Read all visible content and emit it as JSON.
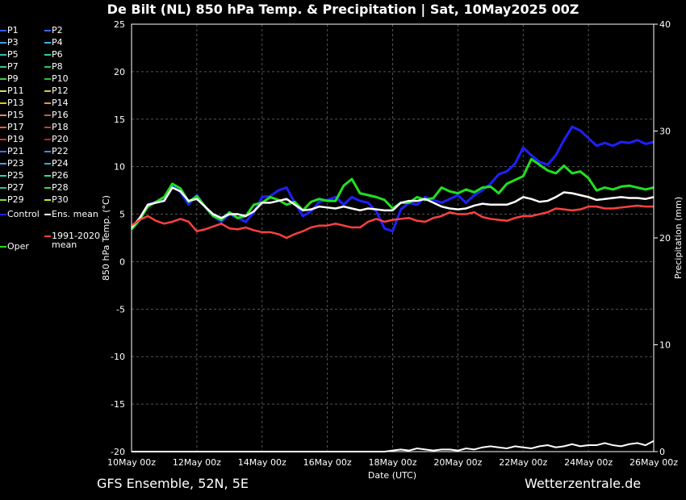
{
  "title": "De Bilt  (NL)  850 hPa Temp. & Precipitation | Sat, 10May2025 00Z",
  "footer_left": "GFS Ensemble, 52N, 5E",
  "footer_right": "Wetterzentrale.de",
  "legend": [
    {
      "label": "P1",
      "color": "#3b5bff"
    },
    {
      "label": "P2",
      "color": "#3d6cf0"
    },
    {
      "label": "P3",
      "color": "#4a9fe0"
    },
    {
      "label": "P4",
      "color": "#35b8d8"
    },
    {
      "label": "P5",
      "color": "#2fc0c0"
    },
    {
      "label": "P6",
      "color": "#2fd0a0"
    },
    {
      "label": "P7",
      "color": "#35c890"
    },
    {
      "label": "P8",
      "color": "#30c070"
    },
    {
      "label": "P9",
      "color": "#40d040"
    },
    {
      "label": "P10",
      "color": "#30c030"
    },
    {
      "label": "P11",
      "color": "#d8d860"
    },
    {
      "label": "P12",
      "color": "#e0c040"
    },
    {
      "label": "P13",
      "color": "#e8c030"
    },
    {
      "label": "P14",
      "color": "#e0a030"
    },
    {
      "label": "P15",
      "color": "#e09060"
    },
    {
      "label": "P16",
      "color": "#c06040"
    },
    {
      "label": "P17",
      "color": "#e06030"
    },
    {
      "label": "P18",
      "color": "#c04030"
    },
    {
      "label": "P19",
      "color": "#e03030"
    },
    {
      "label": "P20",
      "color": "#c02020"
    },
    {
      "label": "P21",
      "color": "#4070ff"
    },
    {
      "label": "P22",
      "color": "#3090e0"
    },
    {
      "label": "P23",
      "color": "#40a0f0"
    },
    {
      "label": "P24",
      "color": "#30b0d0"
    },
    {
      "label": "P25",
      "color": "#30d0b0"
    },
    {
      "label": "P26",
      "color": "#30e090"
    },
    {
      "label": "P27",
      "color": "#30c0a0"
    },
    {
      "label": "P28",
      "color": "#50d050"
    },
    {
      "label": "P29",
      "color": "#80e040"
    },
    {
      "label": "P30",
      "color": "#e0e020"
    },
    {
      "label": "Control",
      "color": "#2020ff"
    },
    {
      "label": "Ens. mean",
      "color": "#ffffff"
    },
    {
      "label": "1991-2020",
      "color": "#ff4040"
    },
    {
      "label": "mean",
      "color": ""
    },
    {
      "label": "Oper",
      "color": "#20e020"
    }
  ],
  "chart_data": {
    "type": "line",
    "title": "De Bilt  (NL)  850 hPa Temp. & Precipitation | Sat, 10May2025 00Z",
    "xlabel": "Date (UTC)",
    "ylabel": "850 hPa Temp. (°C)",
    "y2label": "Precipitation (mm)",
    "x_tick_labels": [
      "10May 00z",
      "12May 00z",
      "14May 00z",
      "16May 00z",
      "18May 00z",
      "20May 00z",
      "22May 00z",
      "24May 00z",
      "26May 00z"
    ],
    "x_range_hours": [
      0,
      384
    ],
    "x_step_hours": 6,
    "ylim": [
      -20,
      25
    ],
    "y_ticks": [
      25,
      20,
      15,
      10,
      5,
      0,
      -5,
      -10,
      -15,
      -20
    ],
    "y2lim": [
      0,
      40
    ],
    "y2_ticks": [
      40,
      30,
      20,
      10,
      0
    ],
    "grid": true,
    "series": [
      {
        "name": "Control",
        "color": "#2020ff",
        "values": [
          3.4,
          4.5,
          6,
          6.3,
          6.6,
          8,
          7.3,
          6,
          7,
          5.8,
          4.8,
          4.2,
          5,
          4.6,
          4.2,
          5.2,
          6.8,
          6.9,
          7.5,
          7.8,
          6.2,
          4.8,
          5.3,
          6.3,
          6.5,
          6.8,
          6,
          6.8,
          6.4,
          6.2,
          5.3,
          3.5,
          3.2,
          5.5,
          6.2,
          6,
          6.8,
          6.5,
          6.2,
          6.6,
          7,
          6.2,
          7,
          7.5,
          8.2,
          9.2,
          9.5,
          10.3,
          12,
          11.2,
          10.5,
          10.2,
          11.2,
          12.8,
          14.2,
          13.8,
          13,
          12.2,
          12.5,
          12.2,
          12.6,
          12.5,
          12.8,
          12.4,
          12.6
        ]
      },
      {
        "name": "Oper",
        "color": "#20e020",
        "values": [
          3.4,
          4.4,
          5.8,
          6.3,
          6.8,
          8.2,
          7.7,
          6.3,
          6.9,
          5.8,
          4.8,
          4.4,
          5.2,
          4.6,
          4.8,
          6,
          6.2,
          6.8,
          6.5,
          6,
          6.3,
          5.4,
          6.3,
          6.6,
          6.4,
          6.4,
          8,
          8.7,
          7.2,
          7,
          6.8,
          6.5,
          5.6,
          6.2,
          6.2,
          6.8,
          6.5,
          6.7,
          7.8,
          7.4,
          7.2,
          7.6,
          7.3,
          7.8,
          7.9,
          7.2,
          8.2,
          8.6,
          9,
          10.8,
          10.2,
          9.6,
          9.3,
          10.1,
          9.3,
          9.5,
          8.8,
          7.5,
          7.8,
          7.6,
          7.9,
          8,
          7.8,
          7.6,
          7.8
        ]
      },
      {
        "name": "Ens. mean",
        "color": "#ffffff",
        "values": [
          3.6,
          4.6,
          6,
          6.2,
          6.4,
          7.8,
          7.4,
          6.4,
          6.6,
          5.8,
          5,
          4.6,
          5,
          5,
          4.8,
          5.3,
          6.2,
          6.2,
          6.4,
          6.6,
          6,
          5.4,
          5.5,
          5.8,
          5.7,
          5.6,
          5.8,
          5.6,
          5.4,
          5.6,
          5.5,
          5.4,
          5.4,
          6.2,
          6.4,
          6.4,
          6.6,
          6.2,
          5.8,
          5.6,
          5.5,
          5.6,
          5.9,
          6.1,
          6,
          6,
          6,
          6.3,
          6.8,
          6.6,
          6.3,
          6.4,
          6.8,
          7.3,
          7.2,
          7,
          6.8,
          6.5,
          6.6,
          6.7,
          6.8,
          6.7,
          6.7,
          6.6,
          6.8
        ]
      },
      {
        "name": "1991-2020 mean",
        "color": "#ff4040",
        "values": [
          3.8,
          4.4,
          4.8,
          4.3,
          4,
          4.2,
          4.5,
          4.2,
          3.2,
          3.4,
          3.7,
          4,
          3.5,
          3.4,
          3.6,
          3.3,
          3.1,
          3.1,
          2.9,
          2.5,
          2.9,
          3.2,
          3.6,
          3.8,
          3.8,
          4,
          3.8,
          3.6,
          3.6,
          4.2,
          4.5,
          4.2,
          4.4,
          4.5,
          4.6,
          4.3,
          4.2,
          4.6,
          4.8,
          5.2,
          5,
          5,
          5.2,
          4.7,
          4.5,
          4.4,
          4.3,
          4.6,
          4.8,
          4.8,
          5,
          5.2,
          5.6,
          5.5,
          5.4,
          5.5,
          5.8,
          5.8,
          5.6,
          5.6,
          5.7,
          5.8,
          5.9,
          5.8,
          5.8
        ]
      }
    ],
    "precipitation_series": [
      {
        "name": "Ens. mean precipitation",
        "color": "#ffffff",
        "values": [
          0,
          0,
          0,
          0,
          0,
          0,
          0,
          0,
          0,
          0,
          0,
          0,
          0,
          0,
          0,
          0,
          0,
          0,
          0,
          0,
          0,
          0,
          0,
          0,
          0,
          0,
          0,
          0,
          0,
          0,
          0,
          0,
          0.1,
          0.2,
          0.1,
          0.3,
          0.2,
          0.1,
          0.2,
          0.2,
          0.1,
          0.3,
          0.2,
          0.4,
          0.5,
          0.4,
          0.3,
          0.5,
          0.4,
          0.3,
          0.5,
          0.6,
          0.4,
          0.5,
          0.7,
          0.5,
          0.6,
          0.6,
          0.8,
          0.6,
          0.5,
          0.7,
          0.8,
          0.6,
          1
        ]
      }
    ]
  }
}
